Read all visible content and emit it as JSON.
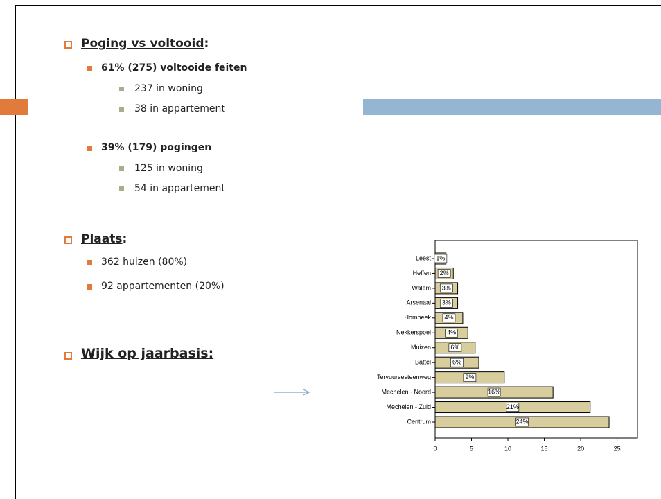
{
  "slide": {
    "sections": [
      {
        "heading": "Poging vs voltooid",
        "punct": ":",
        "items": [
          {
            "text": "61% (275) voltooide feiten",
            "subitems": [
              "237 in woning",
              "38 in appartement"
            ]
          },
          {
            "text": "39% (179) pogingen",
            "subitems": [
              "125 in woning",
              "54 in appartement"
            ]
          }
        ]
      },
      {
        "heading": "Plaats",
        "punct": ":",
        "items": [
          {
            "text": "362 huizen (80%)"
          },
          {
            "text": "92 appartementen (20%)"
          }
        ]
      },
      {
        "heading": "Wijk op jaarbasis:"
      }
    ]
  },
  "chart_data": {
    "type": "hbar",
    "categories": [
      "Leest",
      "Heffen",
      "Walem",
      "Arsenaal",
      "Hombeek",
      "Nekkerspoel",
      "Muizen",
      "Battel",
      "Tervuursesteenweg",
      "Mechelen - Noord",
      "Mechelen - Zuid",
      "Centrum"
    ],
    "values": [
      1.5,
      2.5,
      3.1,
      3.1,
      3.8,
      4.5,
      5.5,
      6,
      9.5,
      16.2,
      21.3,
      23.9
    ],
    "bar_labels": [
      "1%",
      "2%",
      "3%",
      "3%",
      "4%",
      "4%",
      "6%",
      "6%",
      "9%",
      "16%",
      "21%",
      "24%"
    ],
    "color": "#d8cd9c",
    "xlim": [
      0,
      27.8
    ],
    "xticks": [
      0,
      5,
      10,
      15,
      20,
      25
    ]
  }
}
